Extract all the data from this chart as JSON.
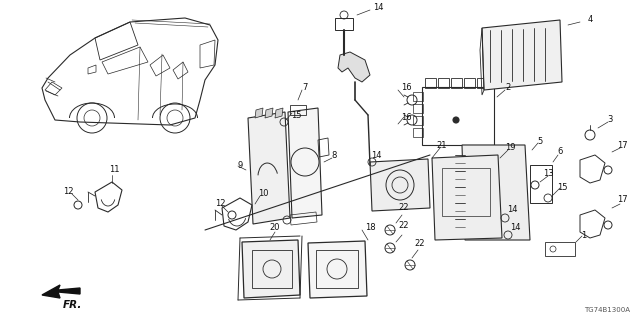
{
  "background_color": "#ffffff",
  "diagram_code": "TG74B1300A",
  "fr_label": "FR.",
  "line_color": "#2a2a2a",
  "label_color": "#111111"
}
